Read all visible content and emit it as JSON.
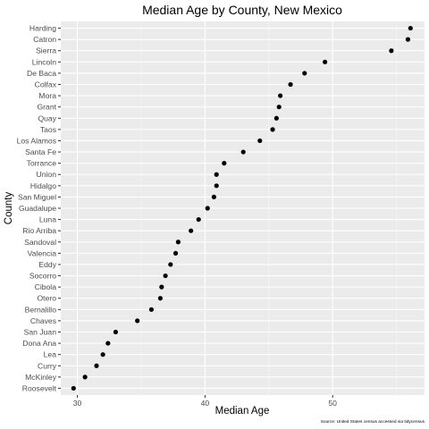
{
  "chart_data": {
    "type": "scatter",
    "title": "Median Age by County, New Mexico",
    "xlabel": "Median Age",
    "ylabel": "County",
    "caption": "Source: United States census accessed via tidycensus",
    "xlim": [
      28.7,
      57.2
    ],
    "x_ticks": [
      30,
      40,
      50
    ],
    "grid": true,
    "categories": [
      "Harding",
      "Catron",
      "Sierra",
      "Lincoln",
      "De Baca",
      "Colfax",
      "Mora",
      "Grant",
      "Quay",
      "Taos",
      "Los Alamos",
      "Santa Fe",
      "Torrance",
      "Union",
      "Hidalgo",
      "San Miguel",
      "Guadalupe",
      "Luna",
      "Rio Arriba",
      "Sandoval",
      "Valencia",
      "Eddy",
      "Socorro",
      "Cibola",
      "Otero",
      "Bernalillo",
      "Chaves",
      "San Juan",
      "Dona Ana",
      "Lea",
      "Curry",
      "McKinley",
      "Roosevelt"
    ],
    "values": [
      56.1,
      55.9,
      54.6,
      49.4,
      47.8,
      46.7,
      45.9,
      45.8,
      45.6,
      45.3,
      44.3,
      43.0,
      41.5,
      40.9,
      40.9,
      40.7,
      40.2,
      39.5,
      38.9,
      37.9,
      37.7,
      37.3,
      36.9,
      36.6,
      36.5,
      35.8,
      34.7,
      33.0,
      32.4,
      32.0,
      31.5,
      30.6,
      29.7
    ]
  }
}
